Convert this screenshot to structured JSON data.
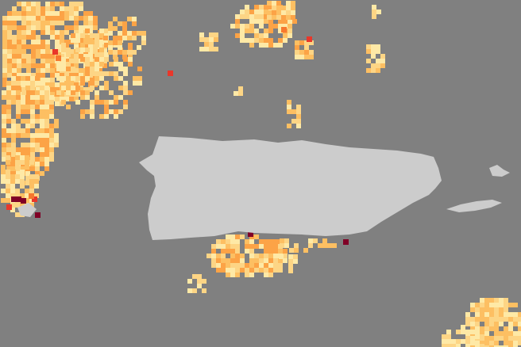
{
  "map": {
    "colors": {
      "ocean": "#808080",
      "land": "#cccccc",
      "scale": [
        "#fee9a6",
        "#fdd585",
        "#fdbf62",
        "#fca346",
        "#f7782e",
        "#e9372a",
        "#800026"
      ]
    }
  }
}
